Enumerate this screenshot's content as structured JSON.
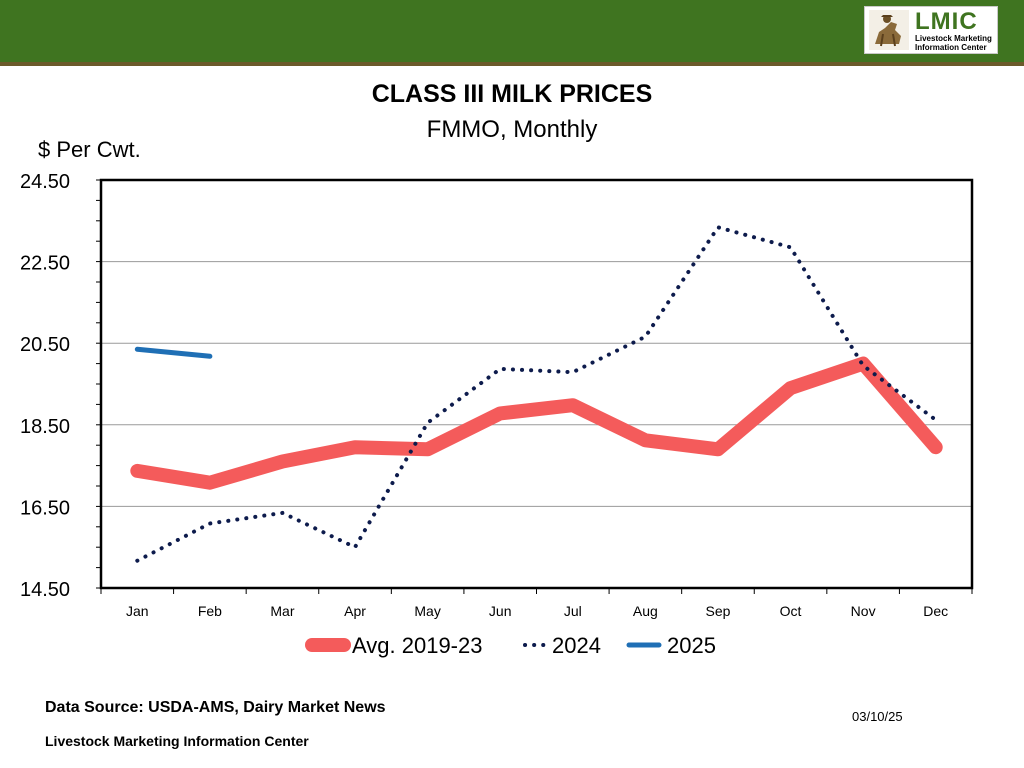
{
  "header": {
    "logo_title": "LMIC",
    "logo_subtitle": "Livestock Marketing Information Center",
    "colors": {
      "bar": "#3f7420",
      "rule": "#6b5a2a"
    }
  },
  "chart_data": {
    "type": "line",
    "title": "CLASS III MILK PRICES",
    "subtitle": "FMMO, Monthly",
    "ylabel": "$ Per Cwt.",
    "xlabel": "",
    "ylim": [
      14.5,
      24.5
    ],
    "yticks": [
      "24.50",
      "22.50",
      "20.50",
      "18.50",
      "16.50",
      "14.50"
    ],
    "ytick_values": [
      24.5,
      22.5,
      20.5,
      18.5,
      16.5,
      14.5
    ],
    "grid": true,
    "legend_position": "bottom",
    "categories": [
      "Jan",
      "Feb",
      "Mar",
      "Apr",
      "May",
      "Jun",
      "Jul",
      "Aug",
      "Sep",
      "Oct",
      "Nov",
      "Dec"
    ],
    "series": [
      {
        "name": "Avg. 2019-23",
        "style": "solid-thick",
        "color": "#f45b5b",
        "values": [
          17.37,
          17.08,
          17.6,
          17.95,
          17.9,
          18.78,
          18.98,
          18.12,
          17.9,
          19.4,
          20.0,
          17.95
        ]
      },
      {
        "name": "2024",
        "style": "dotted",
        "color": "#0d1b4c",
        "values": [
          15.17,
          16.08,
          16.34,
          15.5,
          18.55,
          19.87,
          19.79,
          20.66,
          23.34,
          22.85,
          19.95,
          18.62
        ]
      },
      {
        "name": "2025",
        "style": "solid",
        "color": "#1f6fb5",
        "values": [
          20.35,
          20.18,
          null,
          null,
          null,
          null,
          null,
          null,
          null,
          null,
          null,
          null
        ]
      }
    ]
  },
  "footer": {
    "source": "Data Source:  USDA-AMS, Dairy Market News",
    "org": "Livestock Marketing Information Center",
    "date": "03/10/25"
  }
}
